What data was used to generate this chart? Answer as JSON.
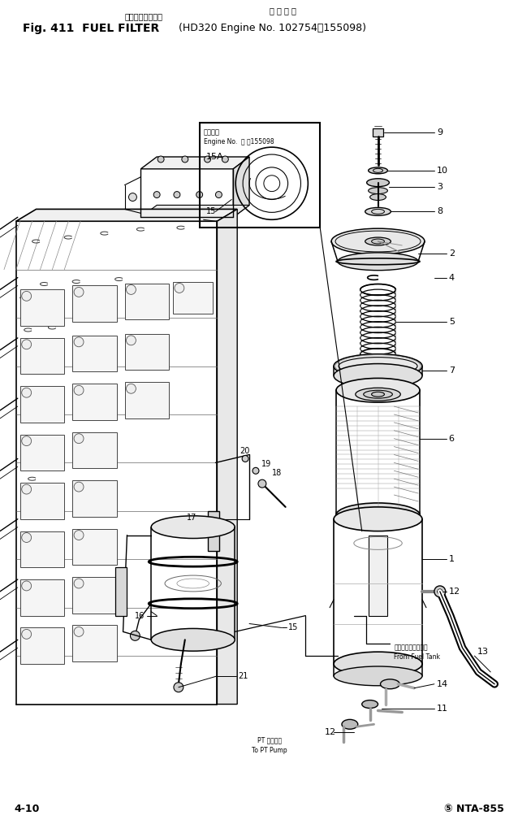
{
  "bg_color": "#ffffff",
  "title_jp1": "フュエルフィルタ",
  "title_jp2": "適 用 号 機",
  "title_main": "Fig. 411  FUEL FILTER",
  "title_sub": "(HD320 Engine No. 102754～155098)",
  "footer_left": "4-10",
  "footer_right": "⑤ NTA-855"
}
